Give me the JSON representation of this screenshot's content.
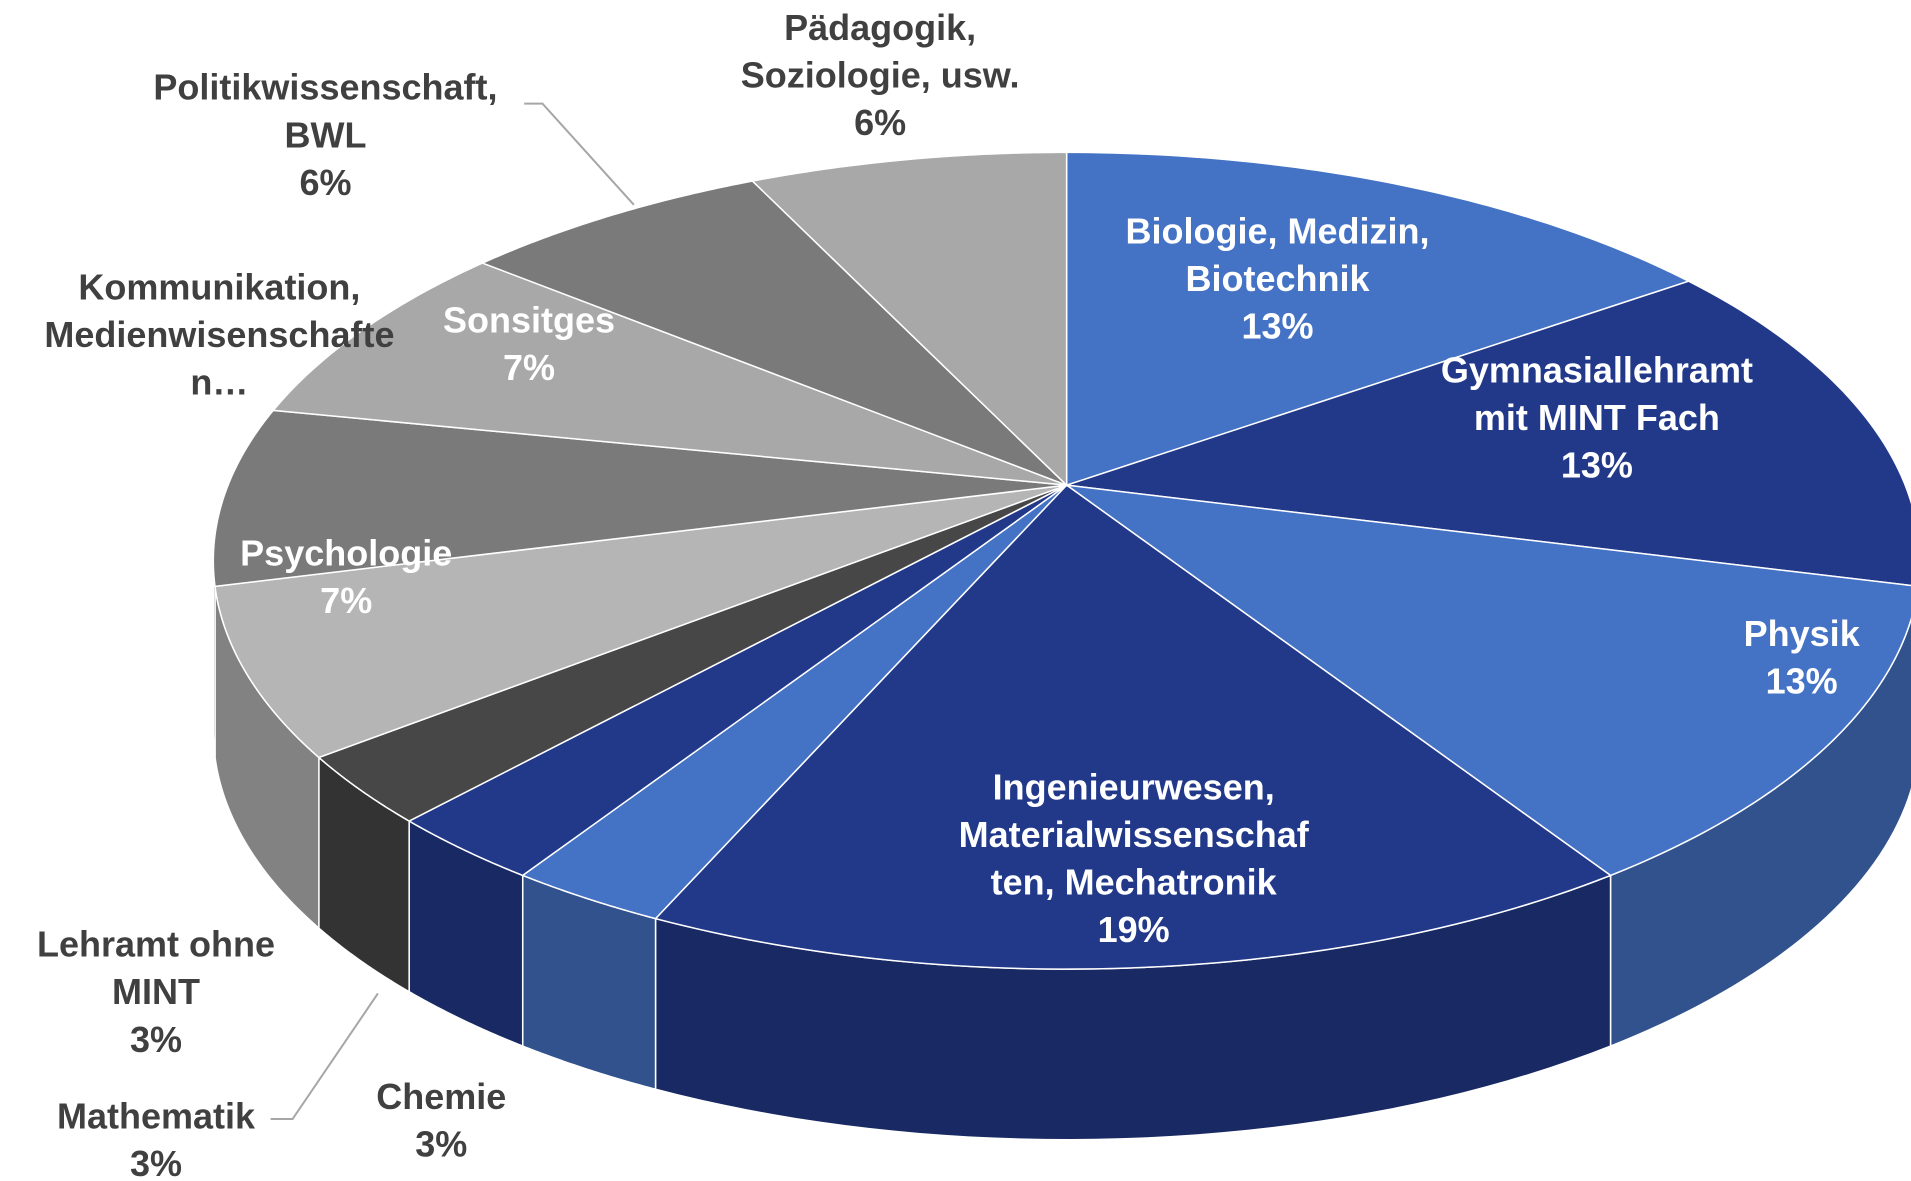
{
  "chart_data": {
    "type": "pie3d",
    "categories": [
      [
        "Biologie, Medizin,",
        "Biotechnik"
      ],
      [
        "Gymnasiallehramt",
        "mit MINT Fach"
      ],
      [
        "Physik"
      ],
      [
        "Ingenieurwesen,",
        "Materialwissenschaf",
        "ten, Mechatronik"
      ],
      [
        "Chemie"
      ],
      [
        "Mathematik"
      ],
      [
        "Lehramt ohne",
        "MINT"
      ],
      [
        "Psychologie"
      ],
      [
        "Kommunikation,",
        "Medienwisenschafte",
        "n…"
      ],
      [
        "Sonsitges"
      ],
      [
        "Politikwissenschaft,",
        "BWL"
      ],
      [
        "Pädagogik,",
        "Soziologie, usw."
      ]
    ],
    "values": [
      13,
      13,
      13,
      19,
      3,
      3,
      3,
      7,
      7,
      7,
      6,
      6
    ],
    "value_labels": [
      "13%",
      "13%",
      "13%",
      "19%",
      "3%",
      "3%",
      "3%",
      "7%",
      null,
      "7%",
      "6%",
      "6%"
    ],
    "colors": [
      "#4472c4",
      "#22398a",
      "#4472c4",
      "#22398a",
      "#4472c4",
      "#22398a",
      "#474747",
      "#b5b5b5",
      "#7a7a7a",
      "#a8a8a8",
      "#7a7a7a",
      "#a8a8a8"
    ]
  }
}
